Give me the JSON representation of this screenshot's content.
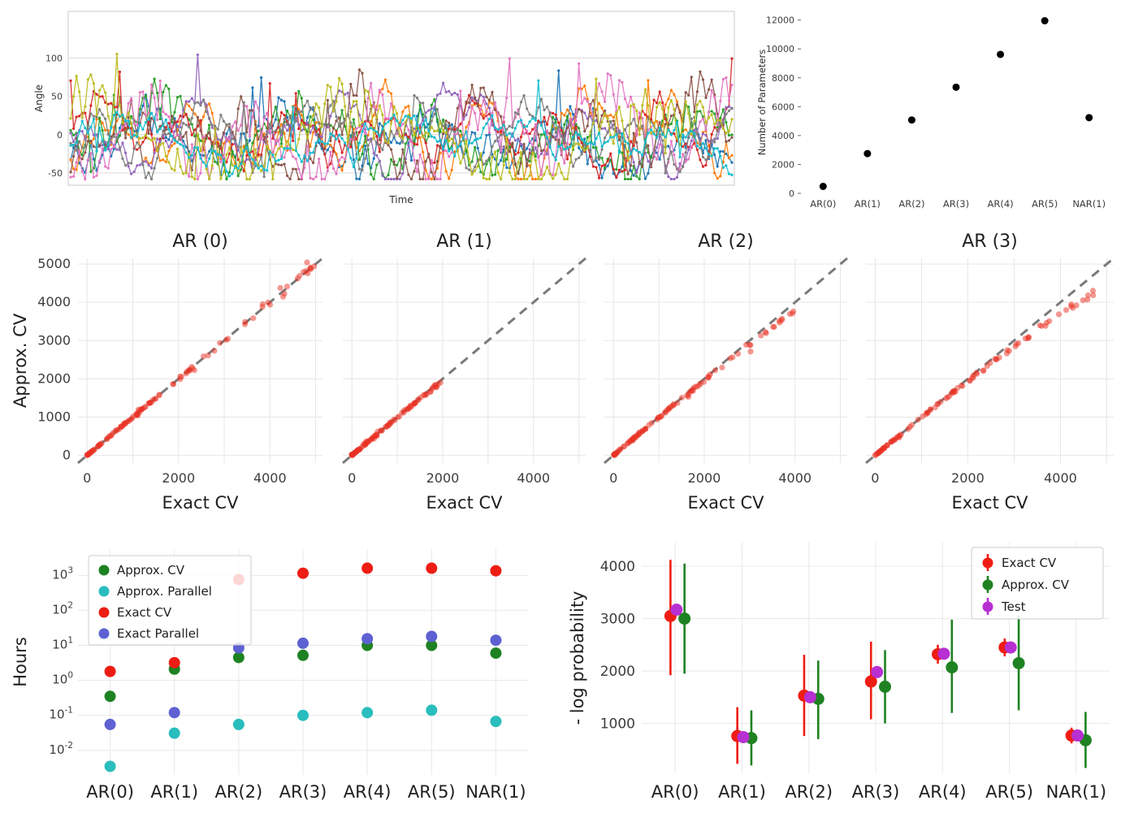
{
  "chart_data": [
    {
      "name": "angle_timeseries",
      "type": "line",
      "title": "",
      "xlabel": "Time",
      "ylabel": "Angle",
      "yticks": [
        100,
        50,
        0,
        -50
      ],
      "ylim": [
        -66,
        161
      ],
      "grid": "horizontal",
      "n_points": 230,
      "seed": 11,
      "series_colors": [
        "#1f77b4",
        "#ff7f0e",
        "#2ca02c",
        "#d62728",
        "#9467bd",
        "#8c564b",
        "#e377c2",
        "#7f7f7f",
        "#bcbd22",
        "#17becf"
      ]
    },
    {
      "name": "num_parameters",
      "type": "scatter",
      "ylabel": "Number of Parameters",
      "categories": [
        "AR(0)",
        "AR(1)",
        "AR(2)",
        "AR(3)",
        "AR(4)",
        "AR(5)",
        "NAR(1)"
      ],
      "values": [
        480,
        2750,
        5080,
        7350,
        9620,
        11950,
        5240
      ],
      "yticks": [
        0,
        2000,
        4000,
        6000,
        8000,
        10000,
        12000
      ],
      "ylim": [
        0,
        12600
      ],
      "grid": "off",
      "point_color": "#000000"
    },
    {
      "name": "cv_comparison",
      "type": "scatter",
      "xlabel": "Exact CV",
      "ylabel": "Approx. CV",
      "xticks": [
        0,
        2000,
        4000
      ],
      "yticks": [
        0,
        1000,
        2000,
        3000,
        4000,
        5000
      ],
      "axis_range": [
        -200,
        5150
      ],
      "grid": "on",
      "diagonal": {
        "color": "#7a7a7a",
        "style": "dashed"
      },
      "point_color": "#e93223",
      "panels": [
        {
          "title": "AR (0)",
          "n_points": 115,
          "max_value": 5050,
          "underestimate_fraction": 0.005,
          "seed": 101
        },
        {
          "title": "AR (1)",
          "n_points": 100,
          "max_value": 2050,
          "underestimate_fraction": 0.03,
          "seed": 202
        },
        {
          "title": "AR (2)",
          "n_points": 100,
          "max_value": 3980,
          "underestimate_fraction": 0.06,
          "seed": 303
        },
        {
          "title": "AR (3)",
          "n_points": 100,
          "max_value": 4780,
          "underestimate_fraction": 0.095,
          "seed": 404
        }
      ]
    },
    {
      "name": "runtime_hours",
      "type": "scatter",
      "yscale": "log",
      "ylabel": "Hours",
      "categories": [
        "AR(0)",
        "AR(1)",
        "AR(2)",
        "AR(3)",
        "AR(4)",
        "AR(5)",
        "NAR(1)"
      ],
      "ytick_exponents": [
        -2,
        -1,
        0,
        1,
        2,
        3
      ],
      "ylim_log10": [
        -2.7,
        3.75
      ],
      "grid": "on",
      "legend_position": "upper left",
      "series": [
        {
          "name": "Approx. CV",
          "color": "#1e8222",
          "values": [
            0.35,
            2.1,
            4.5,
            5.2,
            10,
            10,
            6
          ]
        },
        {
          "name": "Approx. Parallel",
          "color": "#2abdbd",
          "values": [
            0.0035,
            0.031,
            0.055,
            0.1,
            0.12,
            0.14,
            0.067
          ]
        },
        {
          "name": "Exact CV",
          "color": "#ee1d14",
          "values": [
            1.8,
            3.2,
            760,
            1150,
            1600,
            1600,
            1350
          ]
        },
        {
          "name": "Exact Parallel",
          "color": "#5d61d2",
          "values": [
            0.055,
            0.12,
            8.5,
            11.5,
            15.5,
            18,
            14
          ]
        }
      ]
    },
    {
      "name": "neg_log_probability",
      "type": "errorbar",
      "ylabel": "- log probability",
      "categories": [
        "AR(0)",
        "AR(1)",
        "AR(2)",
        "AR(3)",
        "AR(4)",
        "AR(5)",
        "NAR(1)"
      ],
      "yticks": [
        1000,
        2000,
        3000,
        4000
      ],
      "ylim": [
        50,
        4450
      ],
      "grid": "on",
      "legend_position": "upper right",
      "series": [
        {
          "name": "Exact CV",
          "color": "#ee1d14",
          "x_offset": -0.07,
          "values": [
            3050,
            760,
            1530,
            1800,
            2320,
            2450,
            770
          ],
          "err_low": [
            1920,
            230,
            760,
            1080,
            2140,
            2280,
            620
          ],
          "err_high": [
            4120,
            1310,
            2310,
            2560,
            2500,
            2620,
            920
          ]
        },
        {
          "name": "Approx. CV",
          "color": "#1e8222",
          "x_offset": 0.14,
          "values": [
            3000,
            720,
            1470,
            1700,
            2070,
            2150,
            680
          ],
          "err_low": [
            1950,
            200,
            700,
            1000,
            1200,
            1250,
            150
          ],
          "err_high": [
            4050,
            1250,
            2200,
            2400,
            2980,
            3050,
            1220
          ]
        },
        {
          "name": "Test",
          "color": "#b82fd2",
          "x_offset": 0.02,
          "values": [
            3170,
            740,
            1500,
            1980,
            2330,
            2450,
            770
          ],
          "err_low": [
            3170,
            740,
            1500,
            1980,
            2330,
            2450,
            770
          ],
          "err_high": [
            3170,
            740,
            1500,
            1980,
            2330,
            2450,
            770
          ]
        }
      ]
    }
  ]
}
